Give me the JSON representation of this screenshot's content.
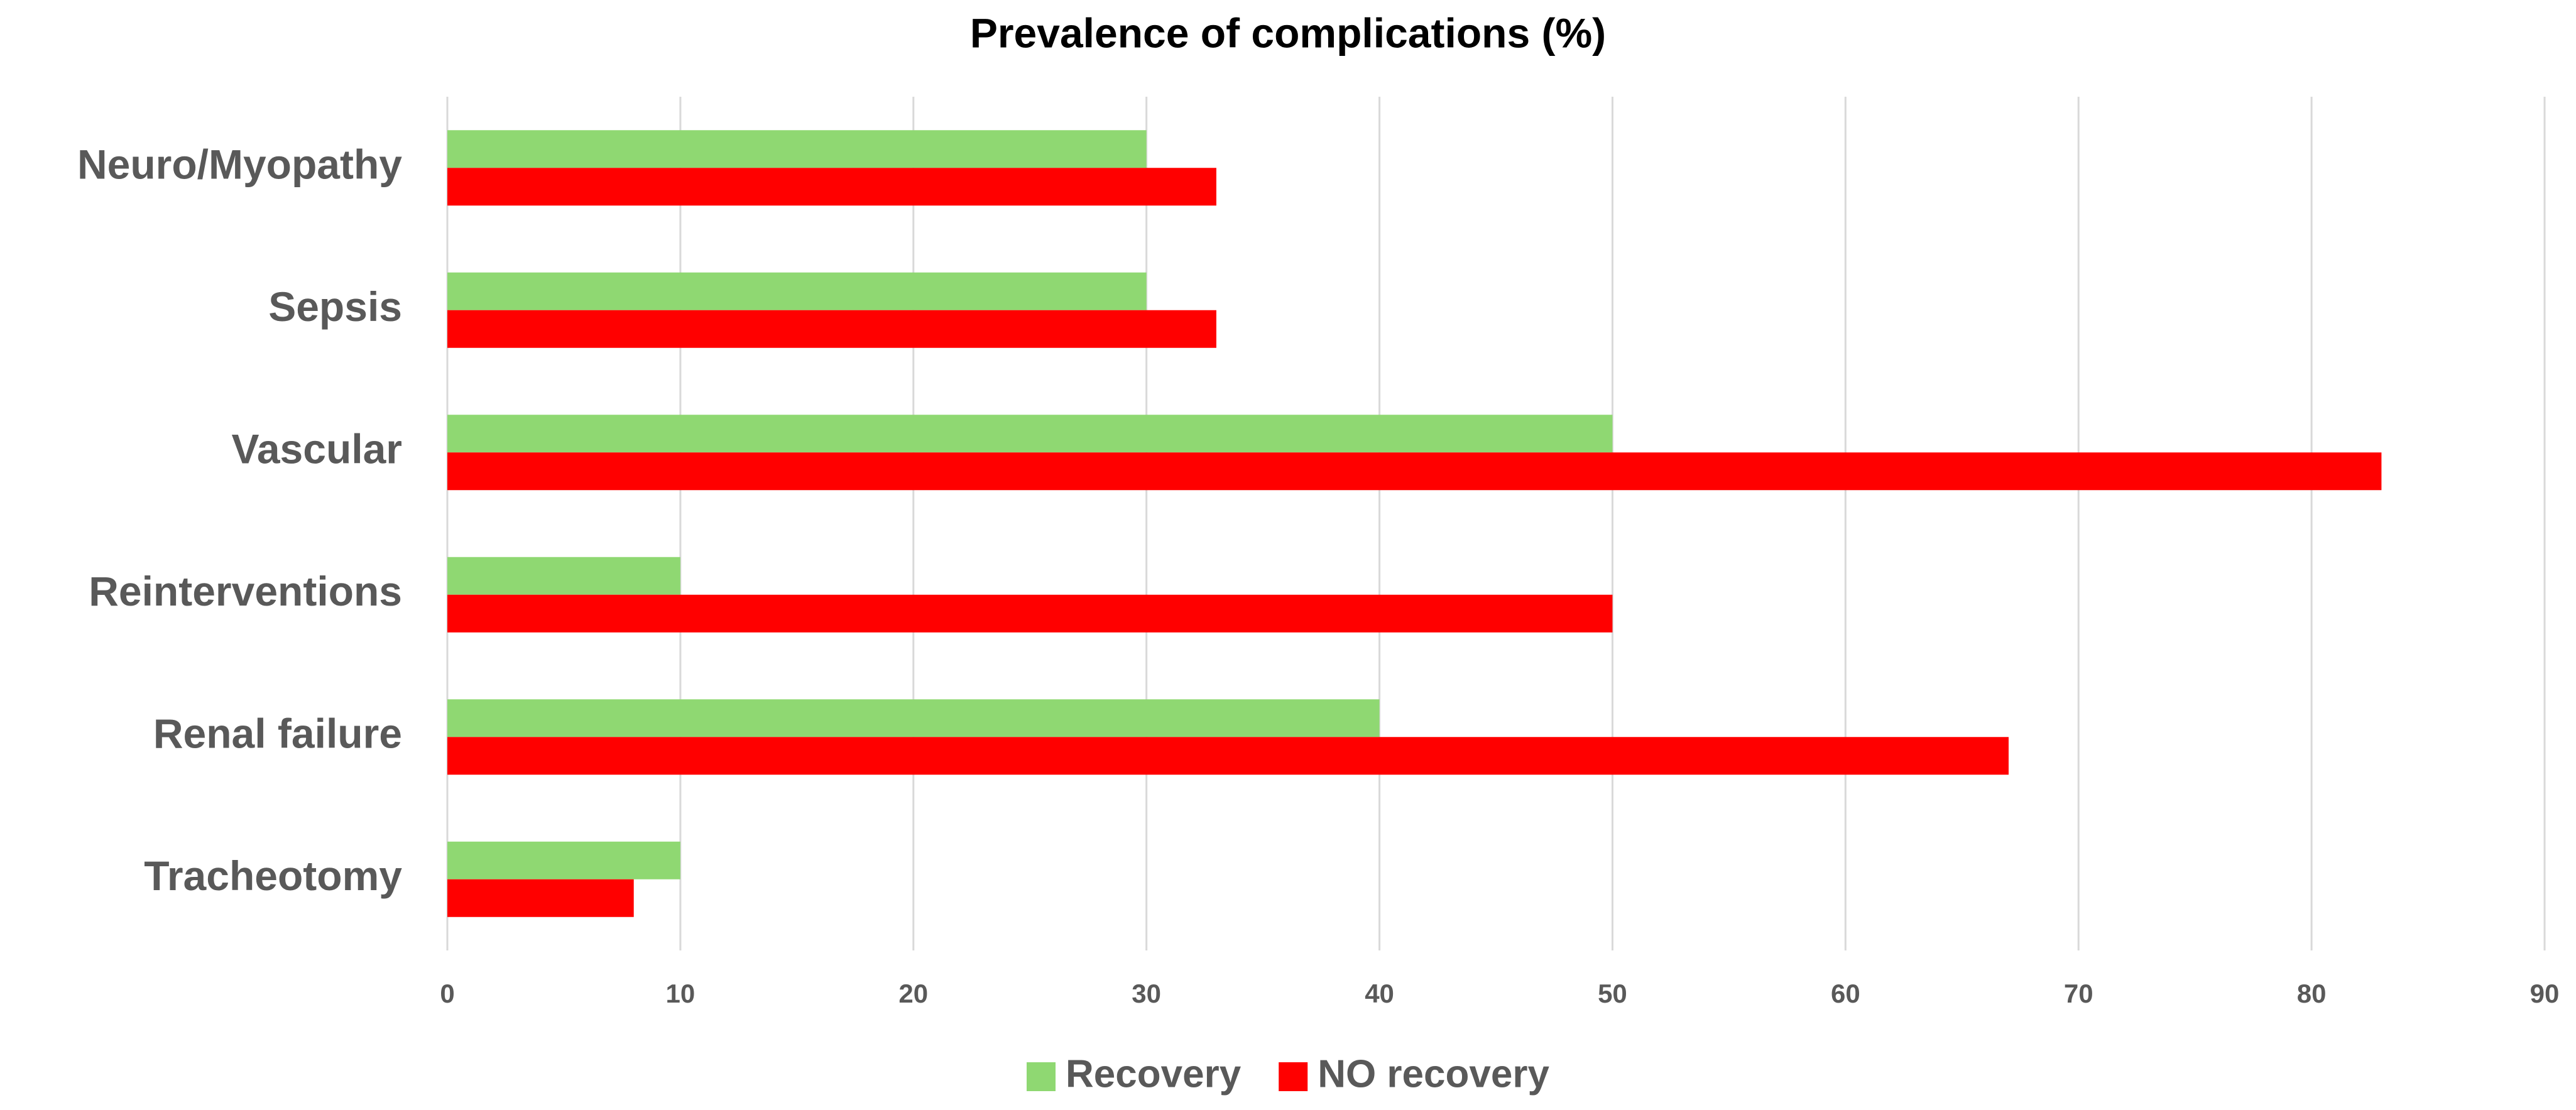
{
  "chart_data": {
    "type": "hbar",
    "title": "Prevalence of complications (%)",
    "categories": [
      "Neuro/Myopathy",
      "Sepsis",
      "Vascular",
      "Reinterventions",
      "Renal failure",
      "Tracheotomy"
    ],
    "series": [
      {
        "name": "Recovery",
        "color": "#8fd872",
        "values": [
          30,
          30,
          50,
          10,
          40,
          10
        ]
      },
      {
        "name": "NO recovery",
        "color": "#ff0000",
        "values": [
          33,
          33,
          83,
          50,
          67,
          8
        ]
      }
    ],
    "xlim": [
      0,
      90
    ],
    "xticks": [
      0,
      10,
      20,
      30,
      40,
      50,
      60,
      70,
      80,
      90
    ],
    "grid": true,
    "legend": "bottom"
  }
}
